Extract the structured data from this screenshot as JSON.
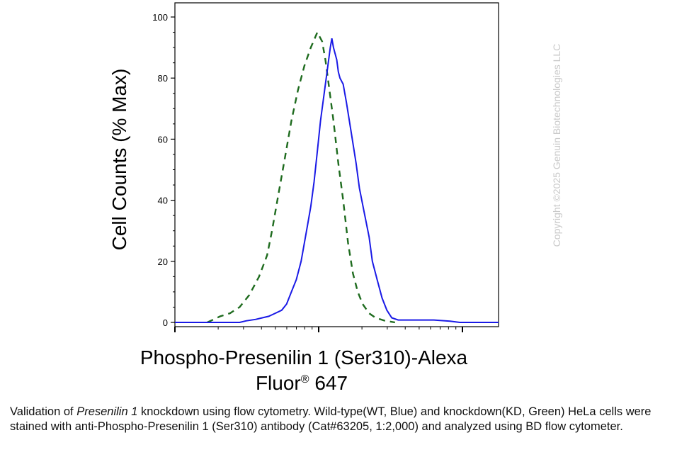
{
  "chart_data": {
    "type": "line",
    "xlabel_line1": "Phospho-Presenilin 1 (Ser310)-Alexa",
    "xlabel_line2_part1": "Fluor",
    "xlabel_line2_reg": "®",
    "xlabel_line2_part2": " 647",
    "ylabel": "Cell Counts (% Max)",
    "ylim": [
      0,
      100
    ],
    "yticks": [
      "0",
      "20",
      "40",
      "60",
      "80",
      "100"
    ],
    "xscale": "log",
    "grid": false,
    "colors": {
      "wt": "#1a1ae6",
      "kd": "#1e6b1e"
    },
    "series": [
      {
        "key": "wt",
        "style": "solid",
        "points": [
          [
            0.0,
            0
          ],
          [
            0.2,
            0
          ],
          [
            0.22,
            0.5
          ],
          [
            0.25,
            1
          ],
          [
            0.27,
            1.5
          ],
          [
            0.29,
            2
          ],
          [
            0.31,
            3
          ],
          [
            0.33,
            4
          ],
          [
            0.345,
            6
          ],
          [
            0.36,
            10
          ],
          [
            0.375,
            14
          ],
          [
            0.39,
            20
          ],
          [
            0.4,
            26
          ],
          [
            0.41,
            32
          ],
          [
            0.42,
            38
          ],
          [
            0.43,
            46
          ],
          [
            0.44,
            56
          ],
          [
            0.45,
            66
          ],
          [
            0.46,
            74
          ],
          [
            0.47,
            82
          ],
          [
            0.48,
            90
          ],
          [
            0.485,
            93
          ],
          [
            0.49,
            90
          ],
          [
            0.5,
            86
          ],
          [
            0.505,
            82
          ],
          [
            0.51,
            80
          ],
          [
            0.52,
            78
          ],
          [
            0.53,
            72
          ],
          [
            0.545,
            62
          ],
          [
            0.56,
            52
          ],
          [
            0.57,
            44
          ],
          [
            0.585,
            36
          ],
          [
            0.6,
            28
          ],
          [
            0.61,
            20
          ],
          [
            0.625,
            14
          ],
          [
            0.64,
            8
          ],
          [
            0.655,
            4
          ],
          [
            0.67,
            1.5
          ],
          [
            0.69,
            0.8
          ],
          [
            0.75,
            0.8
          ],
          [
            0.8,
            0.8
          ],
          [
            0.85,
            0.4
          ],
          [
            0.88,
            0
          ],
          [
            1.0,
            0
          ]
        ]
      },
      {
        "key": "kd",
        "style": "dashed",
        "points": [
          [
            0.1,
            0
          ],
          [
            0.12,
            1
          ],
          [
            0.14,
            2
          ],
          [
            0.17,
            3
          ],
          [
            0.2,
            5
          ],
          [
            0.23,
            9
          ],
          [
            0.26,
            15
          ],
          [
            0.285,
            22
          ],
          [
            0.3,
            30
          ],
          [
            0.32,
            42
          ],
          [
            0.34,
            54
          ],
          [
            0.36,
            66
          ],
          [
            0.38,
            76
          ],
          [
            0.4,
            84
          ],
          [
            0.42,
            90
          ],
          [
            0.44,
            95
          ],
          [
            0.455,
            92
          ],
          [
            0.465,
            86
          ],
          [
            0.475,
            78
          ],
          [
            0.49,
            66
          ],
          [
            0.505,
            52
          ],
          [
            0.52,
            40
          ],
          [
            0.535,
            26
          ],
          [
            0.55,
            16
          ],
          [
            0.565,
            10
          ],
          [
            0.58,
            6
          ],
          [
            0.6,
            3
          ],
          [
            0.62,
            1.5
          ],
          [
            0.65,
            0.5
          ],
          [
            0.68,
            0
          ]
        ]
      }
    ]
  },
  "watermark": "Copyright ©2025 Genuin Biotechnologies LLC",
  "caption": {
    "pre": "Validation of ",
    "italic": "Presenilin 1",
    "post": " knockdown using flow cytometry. Wild-type(WT, Blue) and knockdown(KD, Green)  HeLa cells were stained with anti-Phospho-Presenilin 1 (Ser310) antibody (Cat#63205, 1:2,000) and analyzed using BD flow cytometer."
  }
}
